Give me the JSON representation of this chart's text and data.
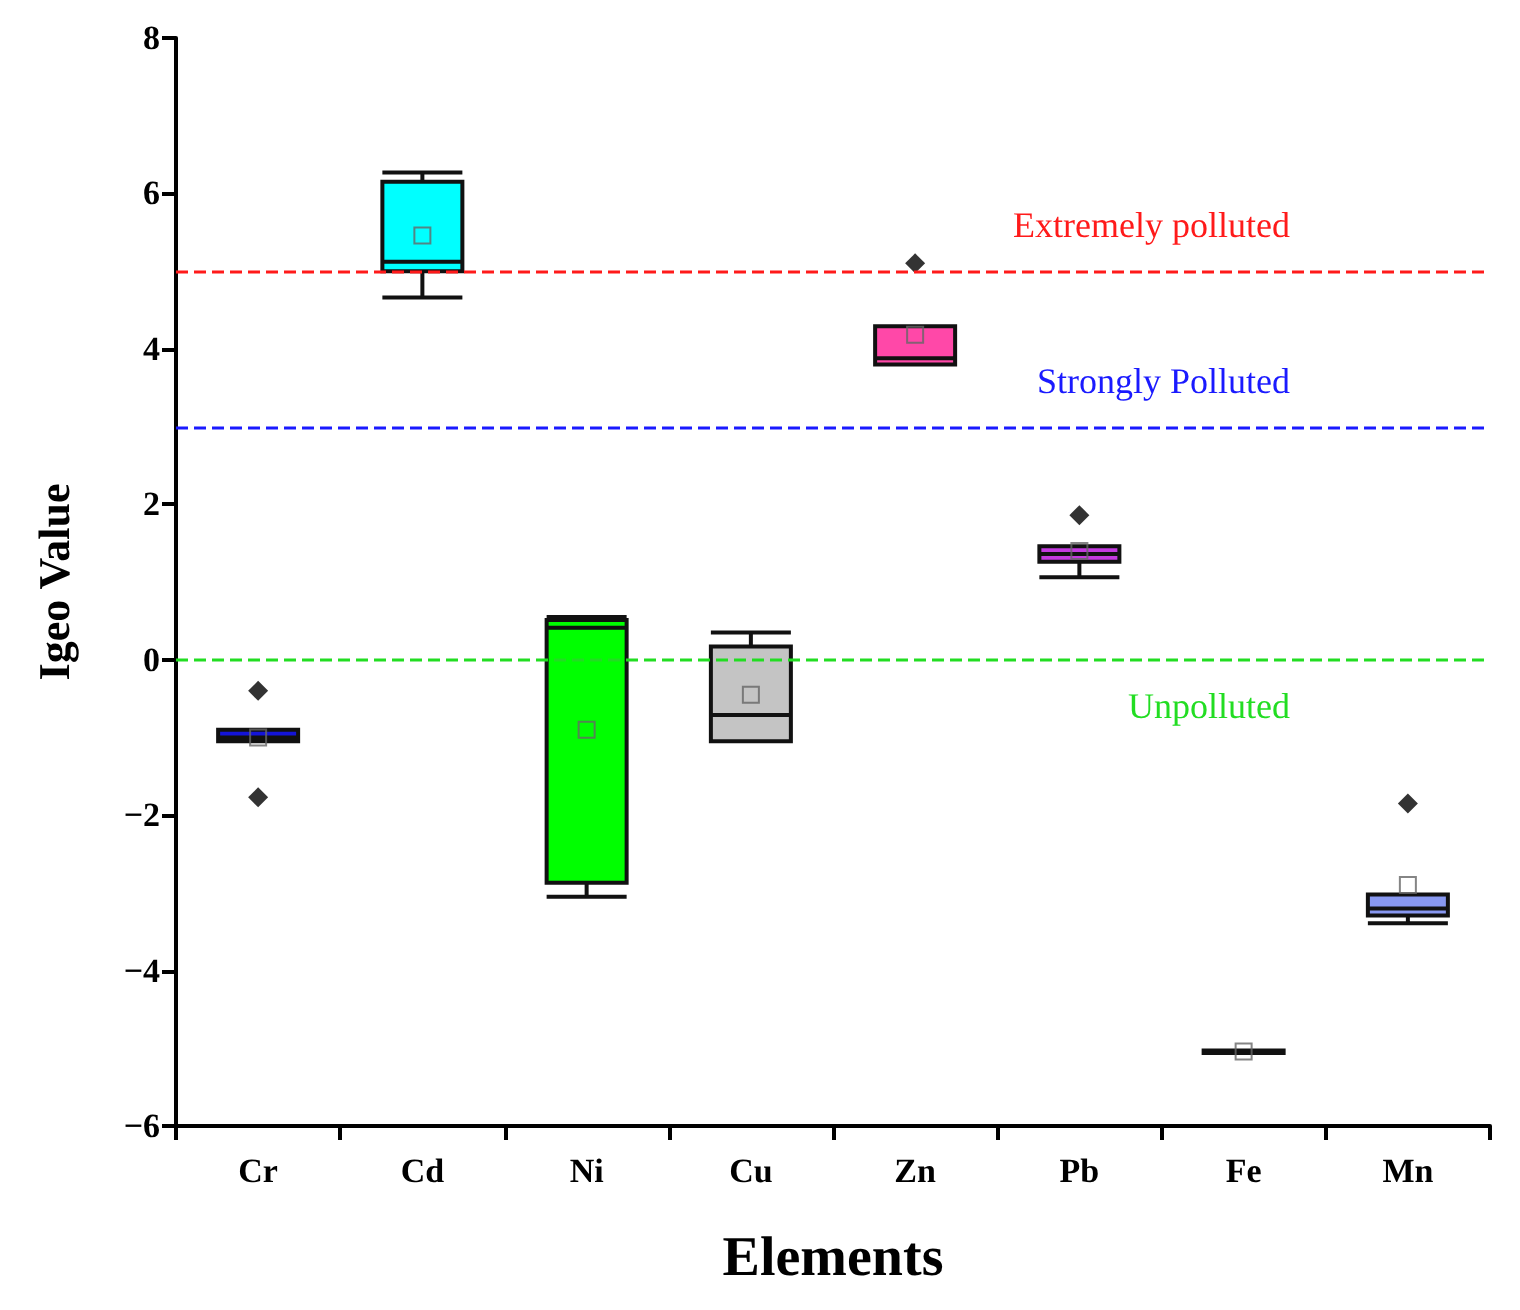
{
  "chart_data": {
    "type": "box",
    "xlabel": "Elements",
    "ylabel": "Igeo Value",
    "categories": [
      "Cr",
      "Cd",
      "Ni",
      "Cu",
      "Zn",
      "Pb",
      "Fe",
      "Mn"
    ],
    "colors": [
      "#1414d8",
      "#00ffff",
      "#00ff00",
      "#c4c4c4",
      "#ff48a8",
      "#c43ae0",
      "#202020",
      "#8898f0"
    ],
    "boxes": [
      {
        "low": -1.05,
        "q1": -1.05,
        "median": -1.0,
        "q3": -0.9,
        "high": -0.9,
        "mean": -1.0,
        "outliers": [
          -0.4,
          -1.77
        ]
      },
      {
        "low": 4.66,
        "q1": 5.0,
        "median": 5.12,
        "q3": 6.15,
        "high": 6.27,
        "mean": 5.46
      },
      {
        "low": -3.05,
        "q1": -2.87,
        "median": 0.41,
        "q3": 0.51,
        "high": 0.55,
        "mean": -0.9
      },
      {
        "low": -1.05,
        "q1": -1.05,
        "median": -0.71,
        "q3": 0.17,
        "high": 0.35,
        "mean": -0.45
      },
      {
        "low": 3.8,
        "q1": 3.8,
        "median": 3.88,
        "q3": 4.29,
        "high": 4.29,
        "mean": 4.18,
        "outliers": [
          5.1
        ]
      },
      {
        "low": 1.06,
        "q1": 1.26,
        "median": 1.36,
        "q3": 1.46,
        "high": 1.46,
        "mean": 1.4,
        "outliers": [
          1.86
        ]
      },
      {
        "low": -5.06,
        "q1": -5.06,
        "median": -5.05,
        "q3": -5.03,
        "high": -5.03,
        "mean": -5.04
      },
      {
        "low": -3.39,
        "q1": -3.29,
        "median": -3.2,
        "q3": -3.02,
        "high": -3.02,
        "mean": -2.9,
        "outliers": [
          -1.85
        ]
      }
    ],
    "ylim": [
      -6,
      8
    ],
    "yticks": [
      -6,
      -4,
      -2,
      0,
      2,
      4,
      6,
      8
    ],
    "grid": false,
    "ref_lines": [
      {
        "axis": "y",
        "value": 5,
        "label": "Extremely polluted",
        "color": "#ff1a1a",
        "line_style": "dashed"
      },
      {
        "axis": "y",
        "value": 3,
        "label": "Strongly Polluted",
        "color": "#1a1aff",
        "line_style": "dashed"
      },
      {
        "axis": "y",
        "value": 0,
        "label": "Unpolluted",
        "color": "#22dd22",
        "line_style": "dashed"
      }
    ]
  }
}
